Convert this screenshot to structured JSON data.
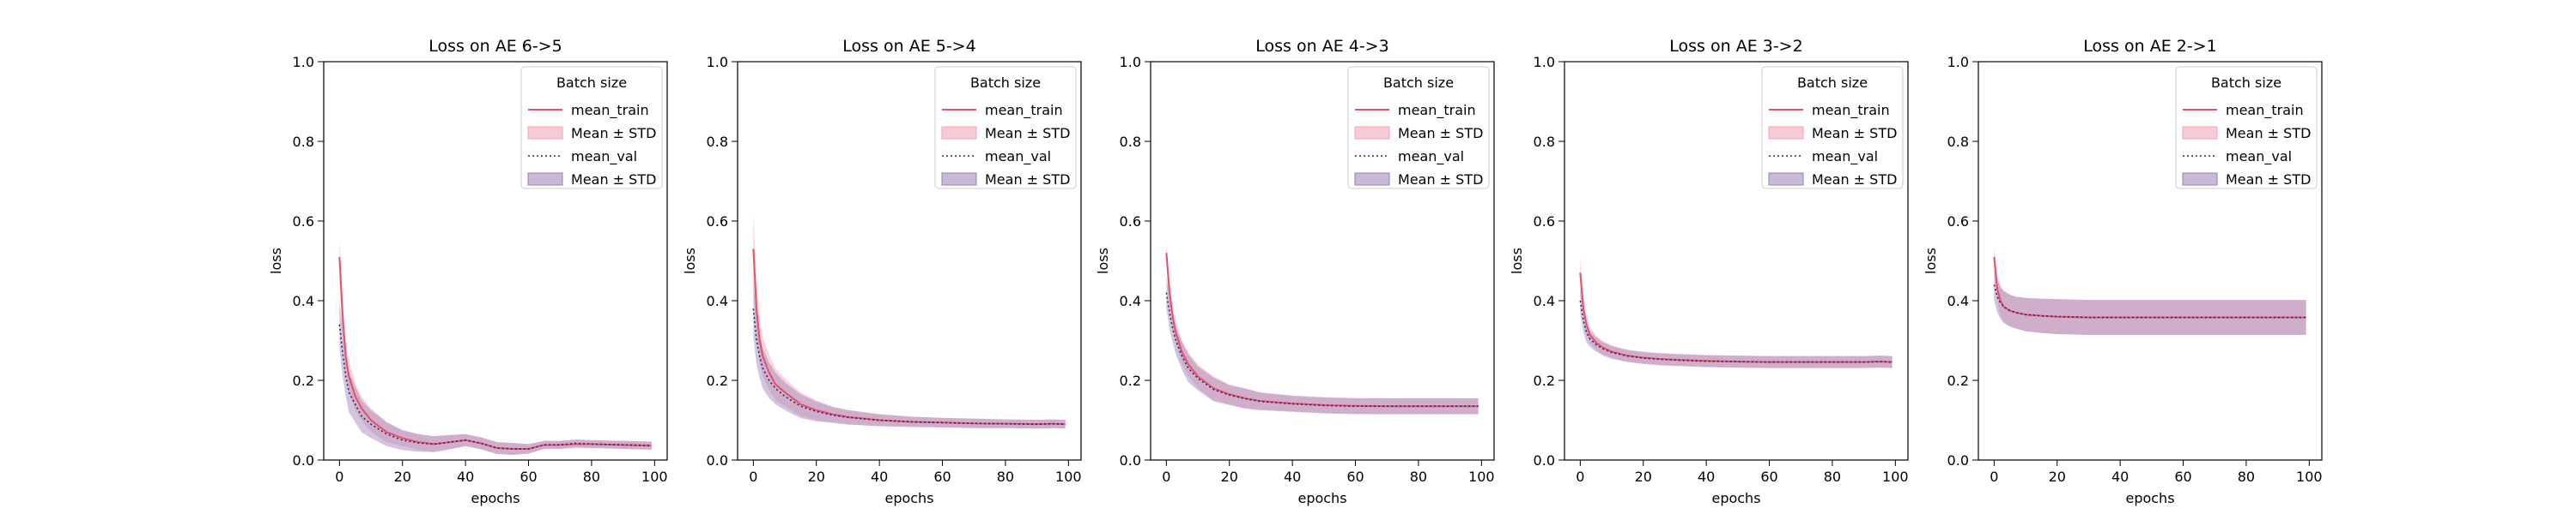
{
  "colors": {
    "train": "#e5506a",
    "train_band": "#f2a3b3",
    "val": "#3b1f5e",
    "val_band": "#9b7fb8"
  },
  "legend": {
    "title": "Batch size",
    "entries": [
      "mean_train",
      "Mean ± STD",
      "mean_val",
      "Mean ± STD"
    ]
  },
  "chart_data": [
    {
      "type": "line",
      "title": "Loss on AE 6->5",
      "xlabel": "epochs",
      "ylabel": "loss",
      "xlim": [
        -5,
        104
      ],
      "ylim": [
        0,
        1
      ],
      "xticks": [
        0,
        20,
        40,
        60,
        80,
        100
      ],
      "yticks": [
        0.0,
        0.2,
        0.4,
        0.6,
        0.8,
        1.0
      ],
      "grid": false,
      "legend_position": "top-right",
      "series": [
        {
          "name": "mean_train",
          "x": [
            0,
            1,
            2,
            3,
            5,
            7,
            10,
            15,
            20,
            25,
            30,
            35,
            40,
            45,
            50,
            55,
            60,
            65,
            70,
            75,
            80,
            85,
            90,
            95,
            99
          ],
          "values": [
            0.51,
            0.36,
            0.26,
            0.21,
            0.16,
            0.13,
            0.1,
            0.07,
            0.055,
            0.045,
            0.04,
            0.045,
            0.05,
            0.042,
            0.03,
            0.028,
            0.028,
            0.038,
            0.038,
            0.04,
            0.04,
            0.039,
            0.038,
            0.037,
            0.036
          ],
          "std": [
            0.05,
            0.05,
            0.04,
            0.04,
            0.035,
            0.03,
            0.03,
            0.025,
            0.02,
            0.02,
            0.02,
            0.018,
            0.015,
            0.015,
            0.015,
            0.015,
            0.012,
            0.01,
            0.01,
            0.01,
            0.01,
            0.01,
            0.01,
            0.01,
            0.01
          ]
        },
        {
          "name": "mean_val",
          "x": [
            0,
            1,
            2,
            3,
            5,
            7,
            10,
            15,
            20,
            25,
            30,
            35,
            40,
            45,
            50,
            55,
            60,
            65,
            70,
            75,
            80,
            85,
            90,
            95,
            99
          ],
          "values": [
            0.34,
            0.27,
            0.21,
            0.17,
            0.14,
            0.11,
            0.09,
            0.065,
            0.05,
            0.043,
            0.04,
            0.045,
            0.05,
            0.042,
            0.03,
            0.028,
            0.028,
            0.038,
            0.038,
            0.042,
            0.04,
            0.039,
            0.038,
            0.037,
            0.036
          ],
          "std": [
            0.06,
            0.06,
            0.05,
            0.05,
            0.045,
            0.04,
            0.035,
            0.03,
            0.025,
            0.022,
            0.02,
            0.018,
            0.015,
            0.015,
            0.015,
            0.015,
            0.012,
            0.01,
            0.01,
            0.01,
            0.01,
            0.01,
            0.01,
            0.01,
            0.01
          ]
        }
      ]
    },
    {
      "type": "line",
      "title": "Loss on AE 5->4",
      "xlabel": "epochs",
      "ylabel": "loss",
      "xlim": [
        -5,
        104
      ],
      "ylim": [
        0,
        1
      ],
      "xticks": [
        0,
        20,
        40,
        60,
        80,
        100
      ],
      "yticks": [
        0.0,
        0.2,
        0.4,
        0.6,
        0.8,
        1.0
      ],
      "grid": false,
      "legend_position": "top-right",
      "series": [
        {
          "name": "mean_train",
          "x": [
            0,
            1,
            2,
            3,
            5,
            7,
            10,
            15,
            20,
            25,
            30,
            40,
            50,
            60,
            70,
            80,
            90,
            95,
            99
          ],
          "values": [
            0.53,
            0.38,
            0.3,
            0.26,
            0.22,
            0.19,
            0.17,
            0.14,
            0.125,
            0.115,
            0.108,
            0.1,
            0.096,
            0.094,
            0.092,
            0.091,
            0.09,
            0.091,
            0.09
          ],
          "std": [
            0.09,
            0.07,
            0.06,
            0.05,
            0.045,
            0.04,
            0.035,
            0.03,
            0.025,
            0.02,
            0.018,
            0.015,
            0.013,
            0.012,
            0.012,
            0.011,
            0.011,
            0.011,
            0.011
          ]
        },
        {
          "name": "mean_val",
          "x": [
            0,
            1,
            2,
            3,
            5,
            7,
            10,
            15,
            20,
            25,
            30,
            40,
            50,
            60,
            70,
            80,
            90,
            95,
            99
          ],
          "values": [
            0.38,
            0.3,
            0.26,
            0.23,
            0.2,
            0.18,
            0.16,
            0.135,
            0.122,
            0.113,
            0.107,
            0.1,
            0.096,
            0.094,
            0.092,
            0.091,
            0.09,
            0.091,
            0.09
          ],
          "std": [
            0.07,
            0.06,
            0.055,
            0.05,
            0.045,
            0.04,
            0.035,
            0.03,
            0.025,
            0.02,
            0.018,
            0.015,
            0.013,
            0.012,
            0.012,
            0.011,
            0.011,
            0.011,
            0.011
          ]
        }
      ]
    },
    {
      "type": "line",
      "title": "Loss on AE 4->3",
      "xlabel": "epochs",
      "ylabel": "loss",
      "xlim": [
        -5,
        104
      ],
      "ylim": [
        0,
        1
      ],
      "xticks": [
        0,
        20,
        40,
        60,
        80,
        100
      ],
      "yticks": [
        0.0,
        0.2,
        0.4,
        0.6,
        0.8,
        1.0
      ],
      "grid": false,
      "legend_position": "top-right",
      "series": [
        {
          "name": "mean_train",
          "x": [
            0,
            1,
            2,
            3,
            5,
            7,
            10,
            15,
            20,
            25,
            30,
            40,
            50,
            60,
            70,
            80,
            90,
            95,
            99
          ],
          "values": [
            0.52,
            0.42,
            0.36,
            0.32,
            0.27,
            0.24,
            0.21,
            0.18,
            0.165,
            0.155,
            0.148,
            0.142,
            0.138,
            0.136,
            0.135,
            0.135,
            0.135,
            0.135,
            0.135
          ],
          "std": [
            0.03,
            0.03,
            0.03,
            0.03,
            0.03,
            0.03,
            0.03,
            0.03,
            0.025,
            0.025,
            0.022,
            0.02,
            0.02,
            0.02,
            0.02,
            0.02,
            0.02,
            0.02,
            0.02
          ]
        },
        {
          "name": "mean_val",
          "x": [
            0,
            1,
            2,
            3,
            5,
            7,
            10,
            15,
            20,
            25,
            30,
            40,
            50,
            60,
            70,
            80,
            90,
            95,
            99
          ],
          "values": [
            0.42,
            0.37,
            0.33,
            0.3,
            0.26,
            0.23,
            0.205,
            0.177,
            0.163,
            0.154,
            0.147,
            0.141,
            0.137,
            0.135,
            0.135,
            0.135,
            0.135,
            0.135,
            0.135
          ],
          "std": [
            0.04,
            0.04,
            0.035,
            0.035,
            0.035,
            0.035,
            0.03,
            0.03,
            0.025,
            0.025,
            0.022,
            0.02,
            0.02,
            0.02,
            0.02,
            0.02,
            0.02,
            0.02,
            0.02
          ]
        }
      ]
    },
    {
      "type": "line",
      "title": "Loss on AE 3->2",
      "xlabel": "epochs",
      "ylabel": "loss",
      "xlim": [
        -5,
        104
      ],
      "ylim": [
        0,
        1
      ],
      "xticks": [
        0,
        20,
        40,
        60,
        80,
        100
      ],
      "yticks": [
        0.0,
        0.2,
        0.4,
        0.6,
        0.8,
        1.0
      ],
      "grid": false,
      "legend_position": "top-right",
      "series": [
        {
          "name": "mean_train",
          "x": [
            0,
            1,
            2,
            3,
            5,
            7,
            10,
            15,
            20,
            25,
            30,
            40,
            50,
            60,
            70,
            80,
            90,
            95,
            99
          ],
          "values": [
            0.47,
            0.38,
            0.34,
            0.315,
            0.295,
            0.283,
            0.272,
            0.262,
            0.257,
            0.254,
            0.252,
            0.249,
            0.247,
            0.246,
            0.246,
            0.246,
            0.246,
            0.247,
            0.246
          ],
          "std": [
            0.04,
            0.03,
            0.025,
            0.02,
            0.018,
            0.017,
            0.016,
            0.015,
            0.015,
            0.015,
            0.015,
            0.015,
            0.015,
            0.015,
            0.015,
            0.015,
            0.015,
            0.015,
            0.015
          ]
        },
        {
          "name": "mean_val",
          "x": [
            0,
            1,
            2,
            3,
            5,
            7,
            10,
            15,
            20,
            25,
            30,
            40,
            50,
            60,
            70,
            80,
            90,
            95,
            99
          ],
          "values": [
            0.4,
            0.35,
            0.32,
            0.305,
            0.29,
            0.28,
            0.27,
            0.261,
            0.256,
            0.253,
            0.251,
            0.248,
            0.247,
            0.246,
            0.246,
            0.246,
            0.246,
            0.247,
            0.246
          ],
          "std": [
            0.035,
            0.03,
            0.025,
            0.02,
            0.018,
            0.017,
            0.016,
            0.015,
            0.015,
            0.015,
            0.015,
            0.015,
            0.015,
            0.015,
            0.015,
            0.015,
            0.015,
            0.015,
            0.015
          ]
        }
      ]
    },
    {
      "type": "line",
      "title": "Loss on AE 2->1",
      "xlabel": "epochs",
      "ylabel": "loss",
      "xlim": [
        -5,
        104
      ],
      "ylim": [
        0,
        1
      ],
      "xticks": [
        0,
        20,
        40,
        60,
        80,
        100
      ],
      "yticks": [
        0.0,
        0.2,
        0.4,
        0.6,
        0.8,
        1.0
      ],
      "grid": false,
      "legend_position": "top-right",
      "series": [
        {
          "name": "mean_train",
          "x": [
            0,
            1,
            2,
            3,
            5,
            7,
            10,
            15,
            20,
            25,
            30,
            40,
            50,
            60,
            70,
            80,
            90,
            99
          ],
          "values": [
            0.51,
            0.43,
            0.4,
            0.385,
            0.375,
            0.37,
            0.365,
            0.362,
            0.36,
            0.359,
            0.358,
            0.358,
            0.358,
            0.358,
            0.358,
            0.358,
            0.358,
            0.358
          ],
          "std": [
            0.03,
            0.035,
            0.038,
            0.04,
            0.04,
            0.04,
            0.042,
            0.043,
            0.044,
            0.044,
            0.044,
            0.044,
            0.044,
            0.044,
            0.044,
            0.044,
            0.044,
            0.044
          ]
        },
        {
          "name": "mean_val",
          "x": [
            0,
            1,
            2,
            3,
            5,
            7,
            10,
            15,
            20,
            25,
            30,
            40,
            50,
            60,
            70,
            80,
            90,
            99
          ],
          "values": [
            0.44,
            0.41,
            0.395,
            0.385,
            0.375,
            0.37,
            0.365,
            0.362,
            0.36,
            0.359,
            0.358,
            0.358,
            0.358,
            0.358,
            0.358,
            0.358,
            0.358,
            0.358
          ],
          "std": [
            0.04,
            0.04,
            0.04,
            0.04,
            0.04,
            0.04,
            0.042,
            0.043,
            0.044,
            0.044,
            0.044,
            0.044,
            0.044,
            0.044,
            0.044,
            0.044,
            0.044,
            0.044
          ]
        }
      ]
    }
  ]
}
